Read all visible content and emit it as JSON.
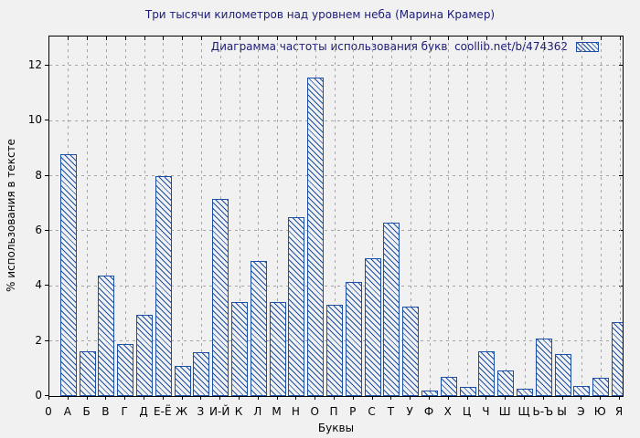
{
  "title": "Три тысячи километров над уровнем неба (Марина Крамер)",
  "legend": {
    "label": "Диаграмма частоты использования букв  coollib.net/b/474362"
  },
  "colors": {
    "bar_outline": "#1c4fa5",
    "title_text": "#1b1b78",
    "background": "#f1f1f1",
    "grid": "#a6a6a6"
  },
  "chart_data": {
    "type": "bar",
    "title": "Три тысячи километров над уровнем неба (Марина Крамер)",
    "xlabel": "Буквы",
    "ylabel": "% использования в тексте",
    "origin_label": "0",
    "categories": [
      "А",
      "Б",
      "В",
      "Г",
      "Д",
      "Е-Ё",
      "Ж",
      "З",
      "И-Й",
      "К",
      "Л",
      "М",
      "Н",
      "О",
      "П",
      "Р",
      "С",
      "Т",
      "У",
      "Ф",
      "Х",
      "Ц",
      "Ч",
      "Ш",
      "Щ",
      "Ь-Ъ",
      "Ы",
      "Э",
      "Ю",
      "Я"
    ],
    "values": [
      8.8,
      1.63,
      4.38,
      1.89,
      2.95,
      8.0,
      1.08,
      1.6,
      7.17,
      3.4,
      4.9,
      3.4,
      6.5,
      11.57,
      3.3,
      4.13,
      5.0,
      6.3,
      3.25,
      0.2,
      0.7,
      0.32,
      1.62,
      0.93,
      0.27,
      2.08,
      1.52,
      0.36,
      0.65,
      2.68
    ],
    "yticks": [
      0,
      2,
      4,
      6,
      8,
      10,
      12
    ],
    "ylim": [
      0,
      13.06
    ],
    "grid": true,
    "hatch": "backslash-diagonal",
    "legend_position": "top-right-inside"
  }
}
